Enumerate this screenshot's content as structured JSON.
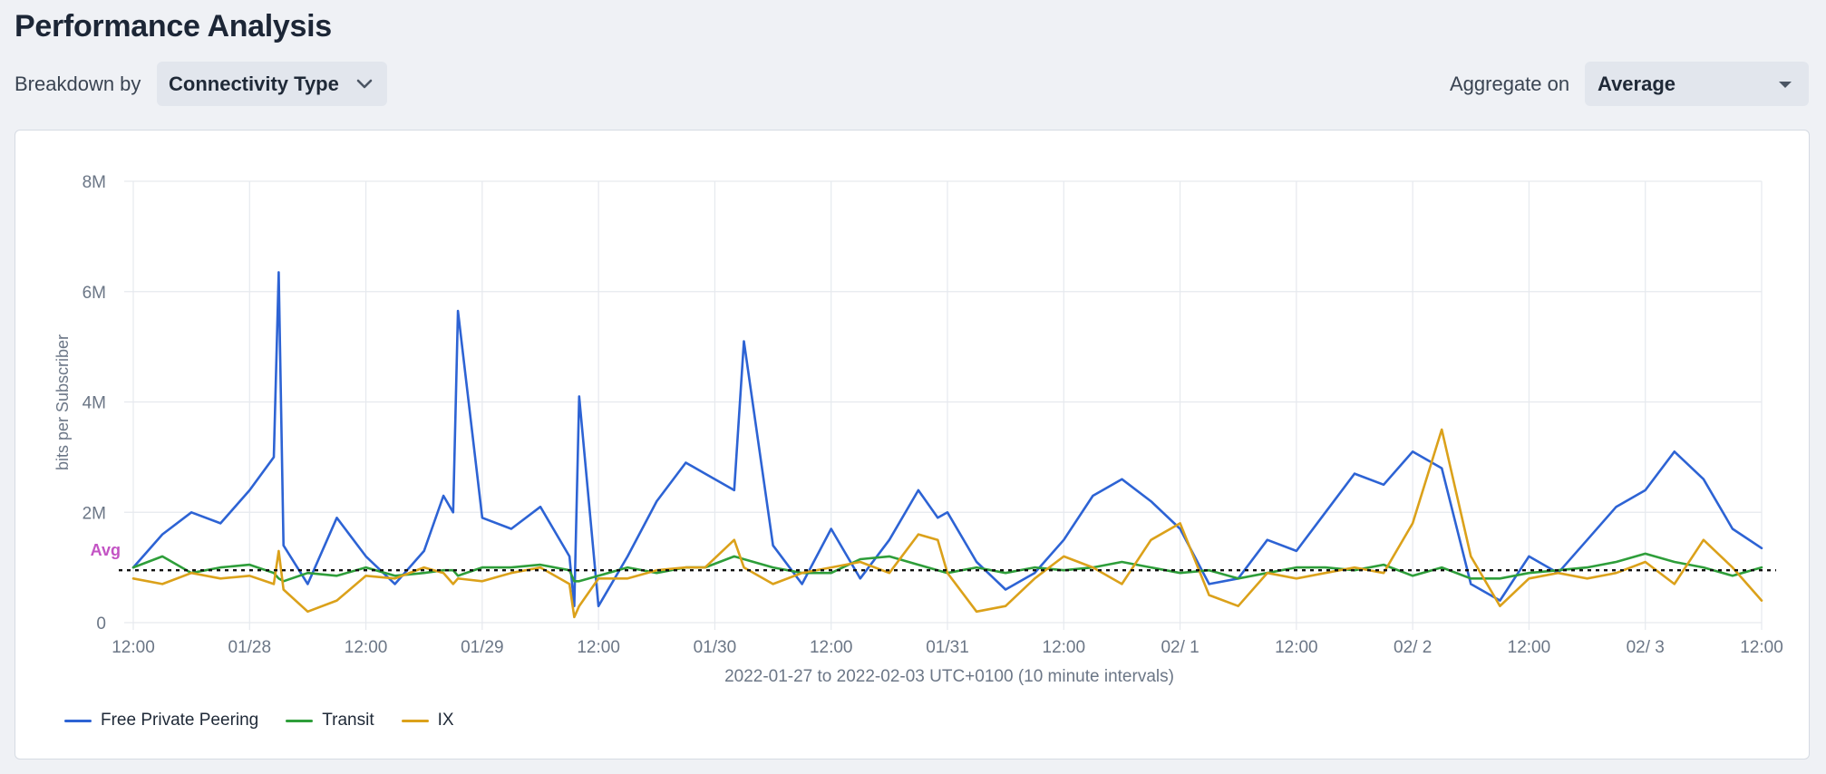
{
  "header": {
    "title": "Performance Analysis"
  },
  "controls": {
    "breakdown_label": "Breakdown by",
    "breakdown_value": "Connectivity Type",
    "aggregate_label": "Aggregate on",
    "aggregate_value": "Average"
  },
  "colors": {
    "free_private_peering": "#2d63d4",
    "transit": "#2e9e3a",
    "ix": "#dba11a",
    "avg_label": "#c353c4",
    "grid": "#e6e9ee",
    "axis_text": "#6b7686"
  },
  "chart_data": {
    "type": "line",
    "title": "",
    "xlabel": "2022-01-27 to 2022-02-03 UTC+0100 (10 minute intervals)",
    "ylabel": "bits per Subscriber",
    "ylim": [
      0,
      8000000
    ],
    "yticks": [
      0,
      2000000,
      4000000,
      6000000,
      8000000
    ],
    "ytick_labels": [
      "0",
      "2M",
      "4M",
      "6M",
      "8M"
    ],
    "xlim_hours": [
      0,
      168
    ],
    "xticks_hours": [
      0,
      12,
      24,
      36,
      48,
      60,
      72,
      84,
      96,
      108,
      120,
      132,
      144,
      156,
      168
    ],
    "xtick_labels": [
      "12:00",
      "01/28",
      "12:00",
      "01/29",
      "12:00",
      "01/30",
      "12:00",
      "01/31",
      "12:00",
      "02/ 1",
      "12:00",
      "02/ 2",
      "12:00",
      "02/ 3",
      "12:00"
    ],
    "avg_line": {
      "label": "Avg",
      "value": 950000
    },
    "x_hours": [
      0,
      3,
      6,
      9,
      12,
      14.5,
      15,
      15.5,
      18,
      21,
      24,
      27,
      30,
      32,
      33,
      33.5,
      36,
      39,
      42,
      45,
      45.5,
      46,
      48,
      51,
      54,
      57,
      59,
      62,
      63,
      66,
      69,
      72,
      75,
      78,
      81,
      83,
      84,
      87,
      90,
      93,
      96,
      99,
      102,
      105,
      108,
      111,
      114,
      117,
      120,
      123,
      126,
      129,
      132,
      135,
      138,
      141,
      144,
      147,
      150,
      153,
      156,
      159,
      162,
      165,
      168
    ],
    "series": [
      {
        "name": "Free Private Peering",
        "values": [
          1000000,
          1600000,
          2000000,
          1800000,
          2400000,
          3000000,
          6350000,
          1400000,
          700000,
          1900000,
          1200000,
          700000,
          1300000,
          2300000,
          2000000,
          5650000,
          1900000,
          1700000,
          2100000,
          1200000,
          300000,
          4100000,
          300000,
          1200000,
          2200000,
          2900000,
          2700000,
          2400000,
          5100000,
          1400000,
          700000,
          1700000,
          800000,
          1500000,
          2400000,
          1900000,
          2000000,
          1100000,
          600000,
          900000,
          1500000,
          2300000,
          2600000,
          2200000,
          1700000,
          700000,
          800000,
          1500000,
          1300000,
          2000000,
          2700000,
          2500000,
          3100000,
          2800000,
          700000,
          400000,
          1200000,
          900000,
          1500000,
          2100000,
          2400000,
          3100000,
          2600000,
          1700000,
          1350000
        ]
      },
      {
        "name": "Transit",
        "values": [
          1000000,
          1200000,
          900000,
          1000000,
          1050000,
          900000,
          800000,
          750000,
          900000,
          850000,
          1000000,
          850000,
          900000,
          950000,
          950000,
          850000,
          1000000,
          1000000,
          1050000,
          950000,
          750000,
          750000,
          850000,
          1000000,
          900000,
          1000000,
          1000000,
          1200000,
          1150000,
          1000000,
          900000,
          900000,
          1150000,
          1200000,
          1050000,
          950000,
          900000,
          1000000,
          900000,
          1000000,
          950000,
          1000000,
          1100000,
          1000000,
          900000,
          950000,
          800000,
          900000,
          1000000,
          1000000,
          950000,
          1050000,
          850000,
          1000000,
          800000,
          800000,
          900000,
          950000,
          1000000,
          1100000,
          1250000,
          1100000,
          1000000,
          850000,
          1000000
        ]
      },
      {
        "name": "IX",
        "values": [
          800000,
          700000,
          900000,
          800000,
          850000,
          700000,
          1300000,
          600000,
          200000,
          400000,
          850000,
          800000,
          1000000,
          900000,
          700000,
          800000,
          750000,
          900000,
          1000000,
          700000,
          100000,
          300000,
          800000,
          800000,
          950000,
          1000000,
          1000000,
          1500000,
          1000000,
          700000,
          900000,
          1000000,
          1100000,
          900000,
          1600000,
          1500000,
          900000,
          200000,
          300000,
          800000,
          1200000,
          1000000,
          700000,
          1500000,
          1800000,
          500000,
          300000,
          900000,
          800000,
          900000,
          1000000,
          900000,
          1800000,
          3500000,
          1200000,
          300000,
          800000,
          900000,
          800000,
          900000,
          1100000,
          700000,
          1500000,
          1000000,
          400000
        ]
      }
    ],
    "legend_position": "bottom-left"
  }
}
